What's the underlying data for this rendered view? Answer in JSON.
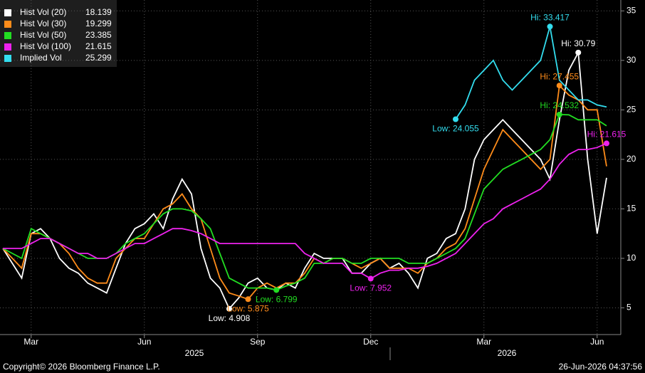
{
  "chart_data": {
    "type": "line",
    "categories": [
      null,
      null,
      null,
      "Mar",
      null,
      null,
      null,
      null,
      null,
      null,
      null,
      null,
      null,
      null,
      null,
      "Jun",
      null,
      null,
      null,
      null,
      null,
      null,
      null,
      null,
      null,
      null,
      null,
      "Sep",
      null,
      null,
      null,
      null,
      null,
      null,
      null,
      null,
      null,
      null,
      null,
      "Dec",
      null,
      null,
      null,
      null,
      null,
      null,
      null,
      null,
      null,
      null,
      null,
      "Mar",
      null,
      null,
      null,
      null,
      null,
      null,
      null,
      null,
      null,
      null,
      null,
      "Jun",
      null
    ],
    "year_labels": [
      "2025",
      "2026"
    ],
    "series": [
      {
        "name": "Hist Vol (20)",
        "color": "#ffffff",
        "high_label": "Hi: 30.79",
        "low_label": "Low: 4.908",
        "values": [
          11,
          9.5,
          8,
          12.5,
          13,
          12,
          10,
          9,
          8.5,
          7.5,
          7,
          6.5,
          9,
          11.5,
          13,
          13.5,
          14.5,
          13,
          16,
          18,
          16.5,
          11,
          8,
          7,
          4.908,
          6,
          7.5,
          8,
          7,
          6.8,
          7.5,
          7,
          9,
          10.5,
          10,
          10,
          10,
          8.5,
          8.5,
          9.5,
          10,
          9,
          9.5,
          8.5,
          7,
          10,
          10.5,
          12,
          12.5,
          15,
          20,
          22,
          23,
          24,
          23,
          22,
          21,
          20,
          18,
          24,
          29,
          30.79,
          20,
          12.5,
          18.139
        ]
      },
      {
        "name": "Hist Vol (30)",
        "color": "#ff8c1a",
        "high_label": "Hi: 27.455",
        "low_label": "Low: 5.875",
        "values": [
          11,
          10,
          9,
          12.5,
          12.5,
          12,
          11.5,
          10.5,
          9,
          8,
          7.5,
          7.5,
          10,
          11,
          12,
          12,
          13.5,
          15,
          15.5,
          16.5,
          15,
          14,
          11,
          8,
          6.5,
          6.2,
          5.875,
          7,
          7.5,
          7,
          7.5,
          7.5,
          8.5,
          10,
          9.5,
          10,
          10,
          9.5,
          9,
          9.5,
          10,
          9,
          9,
          9,
          8.5,
          9.5,
          10,
          11,
          11.5,
          13,
          16,
          19,
          21,
          23,
          22,
          21,
          20,
          19,
          20,
          27.455,
          26.5,
          26,
          25,
          25,
          19.299
        ]
      },
      {
        "name": "Hist Vol (50)",
        "color": "#22dd22",
        "high_label": "Hi: 24.532",
        "low_label": "Low: 6.799",
        "values": [
          11,
          10.5,
          10,
          13,
          12.5,
          12,
          11.5,
          11,
          10.5,
          10,
          10,
          10,
          10.5,
          11.5,
          12,
          12.5,
          13.5,
          14.5,
          15,
          15,
          14.8,
          14,
          13,
          10.5,
          8,
          7.5,
          7,
          7,
          7,
          6.799,
          7.2,
          7.5,
          8,
          9.5,
          9.5,
          10,
          10,
          9.5,
          9.5,
          10,
          10,
          10,
          10,
          9.5,
          9.5,
          9.5,
          10,
          10.5,
          11,
          12,
          14.5,
          17,
          18,
          19,
          19.5,
          20,
          20.5,
          21,
          22,
          24.532,
          24.5,
          24,
          24,
          24,
          23.385
        ]
      },
      {
        "name": "Hist Vol (100)",
        "color": "#ee22ee",
        "high_label": "Hi: 21.615",
        "low_label": "Low: 7.952",
        "values": [
          11,
          11,
          11,
          11.5,
          12,
          12,
          11.5,
          11,
          10.5,
          10.5,
          10,
          10,
          10.5,
          11,
          11.5,
          11.5,
          12,
          12.5,
          13,
          13,
          12.8,
          12.5,
          12,
          11.5,
          11.5,
          11.5,
          11.5,
          11.5,
          11.5,
          11.5,
          11.5,
          11.5,
          10.5,
          10,
          9.5,
          9.5,
          9.5,
          8.5,
          8.5,
          7.952,
          8.5,
          8.8,
          8.8,
          9,
          9,
          9.2,
          9.5,
          10,
          10.5,
          11.5,
          12.5,
          13.5,
          14,
          15,
          15.5,
          16,
          16.5,
          17,
          18,
          19.5,
          20.5,
          21,
          21,
          21.2,
          21.615
        ]
      },
      {
        "name": "Implied Vol",
        "color": "#33ddee",
        "high_label": "Hi: 33.417",
        "low_label": "Low: 24.055",
        "values": [
          null,
          null,
          null,
          null,
          null,
          null,
          null,
          null,
          null,
          null,
          null,
          null,
          null,
          null,
          null,
          null,
          null,
          null,
          null,
          null,
          null,
          null,
          null,
          null,
          null,
          null,
          null,
          null,
          null,
          null,
          null,
          null,
          null,
          null,
          null,
          null,
          null,
          null,
          null,
          null,
          null,
          null,
          null,
          null,
          null,
          null,
          null,
          null,
          24.055,
          25.5,
          28,
          29,
          30,
          28,
          27,
          28,
          29,
          30,
          33.417,
          28,
          27,
          26,
          26,
          25.5,
          25.299
        ]
      }
    ],
    "ylim": [
      2.3,
      36.1
    ],
    "yticks": [
      5,
      10,
      15,
      20,
      25,
      30,
      35
    ],
    "grid": true,
    "footer_left": "Copyright© 2026 Bloomberg Finance L.P.",
    "footer_right": "26-Jun-2026 04:37:56"
  }
}
